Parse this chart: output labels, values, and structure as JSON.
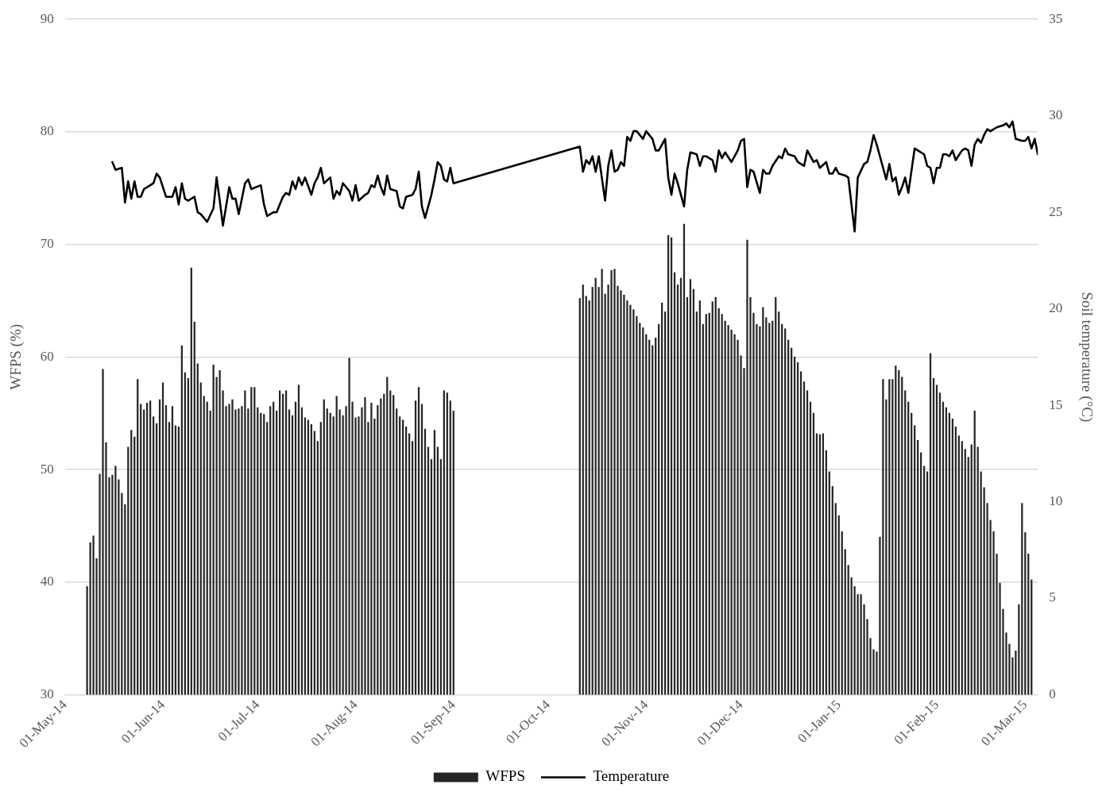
{
  "chart_data": {
    "type": "bar",
    "ylabel": "WFPS (%)",
    "y2label": "Soil temperature (°C)",
    "xlim": [
      "2014-05-01",
      "2015-03-05"
    ],
    "xticks": [
      {
        "value": "2014-05-01",
        "label": "01-May-14"
      },
      {
        "value": "2014-06-01",
        "label": "01-Jun-14"
      },
      {
        "value": "2014-07-01",
        "label": "01-Jul-14"
      },
      {
        "value": "2014-08-01",
        "label": "01-Aug-14"
      },
      {
        "value": "2014-09-01",
        "label": "01-Sep-14"
      },
      {
        "value": "2014-10-01",
        "label": "01-Oct-14"
      },
      {
        "value": "2014-11-01",
        "label": "01-Nov-14"
      },
      {
        "value": "2014-12-01",
        "label": "01-Dec-14"
      },
      {
        "value": "2015-01-01",
        "label": "01-Jan-15"
      },
      {
        "value": "2015-02-01",
        "label": "01-Feb-15"
      },
      {
        "value": "2015-03-01",
        "label": "01-Mar-15"
      }
    ],
    "ylim": [
      30,
      90
    ],
    "yticks": [
      30,
      40,
      50,
      60,
      70,
      80,
      90
    ],
    "y2lim": [
      0,
      35
    ],
    "y2ticks": [
      0,
      5,
      10,
      15,
      20,
      25,
      30,
      35
    ],
    "grid": "y",
    "legend": "bottom",
    "marker": "none",
    "series": [
      {
        "name": "WFPS",
        "color": "#262626",
        "x": [
          "2014-05-08",
          "2014-05-09",
          "2014-05-10",
          "2014-05-11",
          "2014-05-12",
          "2014-05-13",
          "2014-05-14",
          "2014-05-15",
          "2014-05-16",
          "2014-05-17",
          "2014-05-18",
          "2014-05-19",
          "2014-05-20",
          "2014-05-21",
          "2014-05-22",
          "2014-05-23",
          "2014-05-24",
          "2014-05-25",
          "2014-05-26",
          "2014-05-27",
          "2014-05-28",
          "2014-05-29",
          "2014-05-30",
          "2014-05-31",
          "2014-06-01",
          "2014-06-02",
          "2014-06-03",
          "2014-06-04",
          "2014-06-05",
          "2014-06-06",
          "2014-06-07",
          "2014-06-08",
          "2014-06-09",
          "2014-06-10",
          "2014-06-11",
          "2014-06-12",
          "2014-06-13",
          "2014-06-14",
          "2014-06-15",
          "2014-06-16",
          "2014-06-17",
          "2014-06-18",
          "2014-06-19",
          "2014-06-20",
          "2014-06-21",
          "2014-06-22",
          "2014-06-23",
          "2014-06-24",
          "2014-06-25",
          "2014-06-26",
          "2014-06-27",
          "2014-06-28",
          "2014-06-29",
          "2014-06-30",
          "2014-07-01",
          "2014-07-02",
          "2014-07-03",
          "2014-07-04",
          "2014-07-05",
          "2014-07-06",
          "2014-07-07",
          "2014-07-08",
          "2014-07-09",
          "2014-07-10",
          "2014-07-11",
          "2014-07-12",
          "2014-07-13",
          "2014-07-14",
          "2014-07-15",
          "2014-07-16",
          "2014-07-17",
          "2014-07-18",
          "2014-07-19",
          "2014-07-20",
          "2014-07-21",
          "2014-07-22",
          "2014-07-23",
          "2014-07-24",
          "2014-07-25",
          "2014-07-26",
          "2014-07-27",
          "2014-07-28",
          "2014-07-29",
          "2014-07-30",
          "2014-07-31",
          "2014-08-01",
          "2014-08-02",
          "2014-08-03",
          "2014-08-04",
          "2014-08-05",
          "2014-08-06",
          "2014-08-07",
          "2014-08-08",
          "2014-08-09",
          "2014-08-10",
          "2014-08-11",
          "2014-08-12",
          "2014-08-13",
          "2014-08-14",
          "2014-08-15",
          "2014-08-16",
          "2014-08-17",
          "2014-08-18",
          "2014-08-19",
          "2014-08-20",
          "2014-08-21",
          "2014-08-22",
          "2014-08-23",
          "2014-08-24",
          "2014-08-25",
          "2014-08-26",
          "2014-08-27",
          "2014-08-28",
          "2014-08-29",
          "2014-08-30",
          "2014-08-31",
          "2014-09-01",
          "2014-10-11",
          "2014-10-12",
          "2014-10-13",
          "2014-10-14",
          "2014-10-15",
          "2014-10-16",
          "2014-10-17",
          "2014-10-18",
          "2014-10-19",
          "2014-10-20",
          "2014-10-21",
          "2014-10-22",
          "2014-10-23",
          "2014-10-24",
          "2014-10-25",
          "2014-10-26",
          "2014-10-27",
          "2014-10-28",
          "2014-10-29",
          "2014-10-30",
          "2014-10-31",
          "2014-11-01",
          "2014-11-02",
          "2014-11-03",
          "2014-11-04",
          "2014-11-05",
          "2014-11-06",
          "2014-11-07",
          "2014-11-08",
          "2014-11-09",
          "2014-11-10",
          "2014-11-11",
          "2014-11-12",
          "2014-11-13",
          "2014-11-14",
          "2014-11-15",
          "2014-11-16",
          "2014-11-17",
          "2014-11-18",
          "2014-11-19",
          "2014-11-20",
          "2014-11-21",
          "2014-11-22",
          "2014-11-23",
          "2014-11-24",
          "2014-11-25",
          "2014-11-26",
          "2014-11-27",
          "2014-11-28",
          "2014-11-29",
          "2014-11-30",
          "2014-12-01",
          "2014-12-02",
          "2014-12-03",
          "2014-12-04",
          "2014-12-05",
          "2014-12-06",
          "2014-12-07",
          "2014-12-08",
          "2014-12-09",
          "2014-12-10",
          "2014-12-11",
          "2014-12-12",
          "2014-12-13",
          "2014-12-14",
          "2014-12-15",
          "2014-12-16",
          "2014-12-17",
          "2014-12-18",
          "2014-12-19",
          "2014-12-20",
          "2014-12-21",
          "2014-12-22",
          "2014-12-23",
          "2014-12-24",
          "2014-12-25",
          "2014-12-26",
          "2014-12-27",
          "2014-12-28",
          "2014-12-29",
          "2014-12-30",
          "2014-12-31",
          "2015-01-01",
          "2015-01-02",
          "2015-01-03",
          "2015-01-04",
          "2015-01-05",
          "2015-01-06",
          "2015-01-07",
          "2015-01-08",
          "2015-01-09",
          "2015-01-10",
          "2015-01-11",
          "2015-01-12",
          "2015-01-13",
          "2015-01-14",
          "2015-01-15",
          "2015-01-16",
          "2015-01-17",
          "2015-01-18",
          "2015-01-19",
          "2015-01-20",
          "2015-01-21",
          "2015-01-22",
          "2015-01-23",
          "2015-01-24",
          "2015-01-25",
          "2015-01-26",
          "2015-01-27",
          "2015-01-28",
          "2015-01-29",
          "2015-01-30",
          "2015-01-31",
          "2015-02-01",
          "2015-02-02",
          "2015-02-03",
          "2015-02-04",
          "2015-02-05",
          "2015-02-06",
          "2015-02-07",
          "2015-02-08",
          "2015-02-09",
          "2015-02-10",
          "2015-02-11",
          "2015-02-12",
          "2015-02-13",
          "2015-02-14",
          "2015-02-15",
          "2015-02-16",
          "2015-02-17",
          "2015-02-18",
          "2015-02-19",
          "2015-02-20",
          "2015-02-21",
          "2015-02-22",
          "2015-02-23",
          "2015-02-24",
          "2015-02-25",
          "2015-02-26",
          "2015-02-27",
          "2015-02-28",
          "2015-03-01",
          "2015-03-02",
          "2015-03-03"
        ],
        "values": [
          39.6,
          43.5,
          44.1,
          42.1,
          49.6,
          58.9,
          52.4,
          49.3,
          49.5,
          50.3,
          49.1,
          47.9,
          46.9,
          52.0,
          53.5,
          52.9,
          58.0,
          55.8,
          55.3,
          55.9,
          56.1,
          54.7,
          54.1,
          56.2,
          57.7,
          55.7,
          54.2,
          55.6,
          53.9,
          53.8,
          61.0,
          58.6,
          58.1,
          67.9,
          63.1,
          59.4,
          57.7,
          56.5,
          56.0,
          55.2,
          59.3,
          58.2,
          58.8,
          57.0,
          55.6,
          55.8,
          56.2,
          55.3,
          55.4,
          55.6,
          57.0,
          55.4,
          57.3,
          57.3,
          55.5,
          55.0,
          54.9,
          54.2,
          55.6,
          56.0,
          55.2,
          57.0,
          56.7,
          57.0,
          55.3,
          54.8,
          56.0,
          57.5,
          55.5,
          54.6,
          54.4,
          54.0,
          53.4,
          52.5,
          54.2,
          56.2,
          55.4,
          55.0,
          54.7,
          56.5,
          55.3,
          54.8,
          55.6,
          59.9,
          56.0,
          54.6,
          54.7,
          55.5,
          56.4,
          54.2,
          55.9,
          54.5,
          55.7,
          56.3,
          56.7,
          58.2,
          57.0,
          56.6,
          55.4,
          54.7,
          54.4,
          53.8,
          53.2,
          52.5,
          56.1,
          57.3,
          55.8,
          53.6,
          52.0,
          50.9,
          53.5,
          52.0,
          50.9,
          57.0,
          56.8,
          56.1,
          55.2,
          65.2,
          66.4,
          65.4,
          65.0,
          66.2,
          67.0,
          66.2,
          67.8,
          65.6,
          66.4,
          67.7,
          67.8,
          66.3,
          65.9,
          65.5,
          65.0,
          64.6,
          64.2,
          63.6,
          63.0,
          62.6,
          62.0,
          61.5,
          61.0,
          61.7,
          62.9,
          64.8,
          64.0,
          70.8,
          70.6,
          67.5,
          66.4,
          67.0,
          71.8,
          65.3,
          66.9,
          66.0,
          64.0,
          65.0,
          62.9,
          63.8,
          63.9,
          64.9,
          65.3,
          64.3,
          63.8,
          63.2,
          62.8,
          62.4,
          62.0,
          61.5,
          60.1,
          59.0,
          70.4,
          65.3,
          63.9,
          62.9,
          62.7,
          64.4,
          63.5,
          63.0,
          63.2,
          65.3,
          64.0,
          62.9,
          62.5,
          61.5,
          60.8,
          60.0,
          59.5,
          58.7,
          57.8,
          57.0,
          56.0,
          55.0,
          53.2,
          53.1,
          53.2,
          51.7,
          49.8,
          48.5,
          47.0,
          45.9,
          44.5,
          42.9,
          41.5,
          40.4,
          39.6,
          38.9,
          38.9,
          38.0,
          36.7,
          35.0,
          34.0,
          33.8,
          44.0,
          58.0,
          56.2,
          58.0,
          58.0,
          59.2,
          58.8,
          58.2,
          57.0,
          56.0,
          55.0,
          53.9,
          52.6,
          51.5,
          50.3,
          49.8,
          60.3,
          58.1,
          57.5,
          56.8,
          56.0,
          55.5,
          55.0,
          54.5,
          53.8,
          53.0,
          52.5,
          51.8,
          51.1,
          52.2,
          55.2,
          52.0,
          49.8,
          48.4,
          47.0,
          45.5,
          44.5,
          42.5,
          39.9,
          37.6,
          35.5,
          34.5,
          33.3,
          33.9,
          38.0,
          47.0,
          44.4,
          42.5,
          40.2
        ]
      },
      {
        "name": "Temperature",
        "type": "line",
        "axis": "y2",
        "color": "#000000",
        "x": [
          "2014-05-16",
          "2014-05-17",
          "2014-05-19",
          "2014-05-20",
          "2014-05-21",
          "2014-05-22",
          "2014-05-23",
          "2014-05-24",
          "2014-05-25",
          "2014-05-26",
          "2014-05-27",
          "2014-05-29",
          "2014-05-30",
          "2014-05-31",
          "2014-06-01",
          "2014-06-02",
          "2014-06-04",
          "2014-06-05",
          "2014-06-06",
          "2014-06-07",
          "2014-06-08",
          "2014-06-09",
          "2014-06-11",
          "2014-06-12",
          "2014-06-13",
          "2014-06-15",
          "2014-06-17",
          "2014-06-18",
          "2014-06-19",
          "2014-06-20",
          "2014-06-22",
          "2014-06-23",
          "2014-06-24",
          "2014-06-25",
          "2014-06-27",
          "2014-06-28",
          "2014-06-29",
          "2014-07-02",
          "2014-07-03",
          "2014-07-04",
          "2014-07-06",
          "2014-07-07",
          "2014-07-09",
          "2014-07-10",
          "2014-07-11",
          "2014-07-12",
          "2014-07-13",
          "2014-07-14",
          "2014-07-15",
          "2014-07-16",
          "2014-07-18",
          "2014-07-19",
          "2014-07-20",
          "2014-07-21",
          "2014-07-22",
          "2014-07-24",
          "2014-07-25",
          "2014-07-26",
          "2014-07-27",
          "2014-07-28",
          "2014-07-30",
          "2014-07-31",
          "2014-08-01",
          "2014-08-02",
          "2014-08-04",
          "2014-08-05",
          "2014-08-06",
          "2014-08-07",
          "2014-08-08",
          "2014-08-09",
          "2014-08-10",
          "2014-08-11",
          "2014-08-12",
          "2014-08-14",
          "2014-08-15",
          "2014-08-16",
          "2014-08-17",
          "2014-08-19",
          "2014-08-20",
          "2014-08-21",
          "2014-08-22",
          "2014-08-23",
          "2014-08-24",
          "2014-08-25",
          "2014-08-26",
          "2014-08-27",
          "2014-08-28",
          "2014-08-29",
          "2014-08-30",
          "2014-08-31",
          "2014-09-01",
          "2014-10-11",
          "2014-10-12",
          "2014-10-13",
          "2014-10-14",
          "2014-10-15",
          "2014-10-16",
          "2014-10-17",
          "2014-10-19",
          "2014-10-20",
          "2014-10-21",
          "2014-10-22",
          "2014-10-23",
          "2014-10-24",
          "2014-10-25",
          "2014-10-26",
          "2014-10-27",
          "2014-10-28",
          "2014-10-29",
          "2014-10-31",
          "2014-11-01",
          "2014-11-03",
          "2014-11-04",
          "2014-11-05",
          "2014-11-07",
          "2014-11-08",
          "2014-11-09",
          "2014-11-10",
          "2014-11-11",
          "2014-11-13",
          "2014-11-14",
          "2014-11-15",
          "2014-11-17",
          "2014-11-18",
          "2014-11-19",
          "2014-11-20",
          "2014-11-22",
          "2014-11-23",
          "2014-11-24",
          "2014-11-25",
          "2014-11-26",
          "2014-11-28",
          "2014-11-30",
          "2014-12-01",
          "2014-12-02",
          "2014-12-03",
          "2014-12-04",
          "2014-12-05",
          "2014-12-07",
          "2014-12-08",
          "2014-12-09",
          "2014-12-10",
          "2014-12-11",
          "2014-12-13",
          "2014-12-14",
          "2014-12-15",
          "2014-12-16",
          "2014-12-18",
          "2014-12-19",
          "2014-12-21",
          "2014-12-22",
          "2014-12-23",
          "2014-12-24",
          "2014-12-25",
          "2014-12-26",
          "2014-12-28",
          "2014-12-29",
          "2014-12-30",
          "2014-12-31",
          "2015-01-01",
          "2015-01-03",
          "2015-01-04",
          "2015-01-06",
          "2015-01-07",
          "2015-01-09",
          "2015-01-10",
          "2015-01-11",
          "2015-01-12",
          "2015-01-13",
          "2015-01-15",
          "2015-01-16",
          "2015-01-17",
          "2015-01-18",
          "2015-01-19",
          "2015-01-20",
          "2015-01-21",
          "2015-01-22",
          "2015-01-23",
          "2015-01-25",
          "2015-01-26",
          "2015-01-28",
          "2015-01-29",
          "2015-01-30",
          "2015-01-31",
          "2015-02-01",
          "2015-02-02",
          "2015-02-03",
          "2015-02-04",
          "2015-02-05",
          "2015-02-06",
          "2015-02-07",
          "2015-02-09",
          "2015-02-10",
          "2015-02-11",
          "2015-02-12",
          "2015-02-13",
          "2015-02-14",
          "2015-02-15",
          "2015-02-16",
          "2015-02-17",
          "2015-02-18",
          "2015-02-20",
          "2015-02-22",
          "2015-02-23",
          "2015-02-24",
          "2015-02-25",
          "2015-02-26",
          "2015-02-28",
          "2015-03-01",
          "2015-03-02",
          "2015-03-03",
          "2015-03-04",
          "2015-03-05"
        ],
        "values": [
          27.6,
          27.2,
          27.3,
          25.5,
          26.6,
          25.7,
          26.6,
          25.8,
          25.8,
          26.2,
          26.3,
          26.5,
          27.0,
          26.8,
          26.3,
          25.8,
          25.8,
          26.3,
          25.4,
          26.5,
          25.7,
          25.6,
          25.8,
          25.0,
          24.9,
          24.5,
          25.2,
          26.8,
          25.6,
          24.3,
          26.3,
          25.7,
          25.7,
          24.9,
          26.5,
          26.7,
          26.2,
          26.4,
          25.4,
          24.8,
          25.0,
          25.0,
          25.8,
          26.0,
          25.9,
          26.6,
          26.2,
          26.8,
          26.4,
          26.8,
          25.9,
          26.5,
          26.8,
          27.3,
          26.5,
          26.8,
          25.7,
          26.1,
          25.9,
          26.5,
          26.1,
          25.6,
          26.4,
          25.6,
          25.9,
          26.0,
          26.4,
          26.3,
          26.9,
          26.3,
          25.9,
          26.9,
          26.2,
          26.1,
          25.3,
          25.2,
          25.8,
          25.9,
          26.2,
          27.1,
          25.3,
          24.7,
          25.3,
          25.9,
          26.7,
          27.6,
          27.4,
          26.7,
          26.6,
          27.3,
          26.5,
          28.4,
          27.1,
          27.7,
          27.5,
          27.9,
          27.1,
          27.9,
          25.6,
          27.4,
          28.2,
          27.1,
          27.2,
          27.6,
          27.4,
          28.9,
          28.7,
          29.2,
          29.2,
          28.8,
          29.2,
          28.8,
          28.2,
          28.2,
          28.8,
          26.8,
          25.9,
          27.0,
          26.5,
          25.3,
          27.2,
          28.1,
          28.0,
          27.4,
          27.9,
          27.9,
          27.7,
          27.1,
          28.2,
          27.8,
          28.1,
          27.6,
          28.2,
          28.7,
          28.8,
          26.3,
          27.2,
          27.1,
          26.0,
          27.2,
          27.0,
          27.0,
          27.4,
          27.9,
          27.8,
          28.3,
          28.0,
          27.9,
          27.6,
          27.4,
          28.2,
          27.9,
          27.6,
          27.7,
          27.3,
          27.6,
          27.0,
          27.0,
          27.3,
          27.0,
          26.9,
          26.8,
          24.0,
          26.8,
          27.5,
          27.6,
          28.2,
          29.0,
          28.5,
          27.3,
          26.7,
          27.5,
          26.6,
          26.8,
          25.9,
          26.3,
          26.8,
          26.0,
          28.3,
          28.2,
          28.0,
          27.4,
          27.3,
          26.5,
          27.3,
          27.3,
          28.0,
          28.0,
          27.9,
          28.2,
          27.7,
          28.2,
          28.3,
          28.2,
          27.4,
          28.5,
          28.8,
          28.6,
          29.0,
          29.3,
          29.2,
          29.4,
          29.5,
          29.6,
          29.4,
          29.7,
          28.8,
          28.7,
          28.7,
          28.9,
          28.3,
          28.8,
          28.0
        ]
      }
    ]
  }
}
